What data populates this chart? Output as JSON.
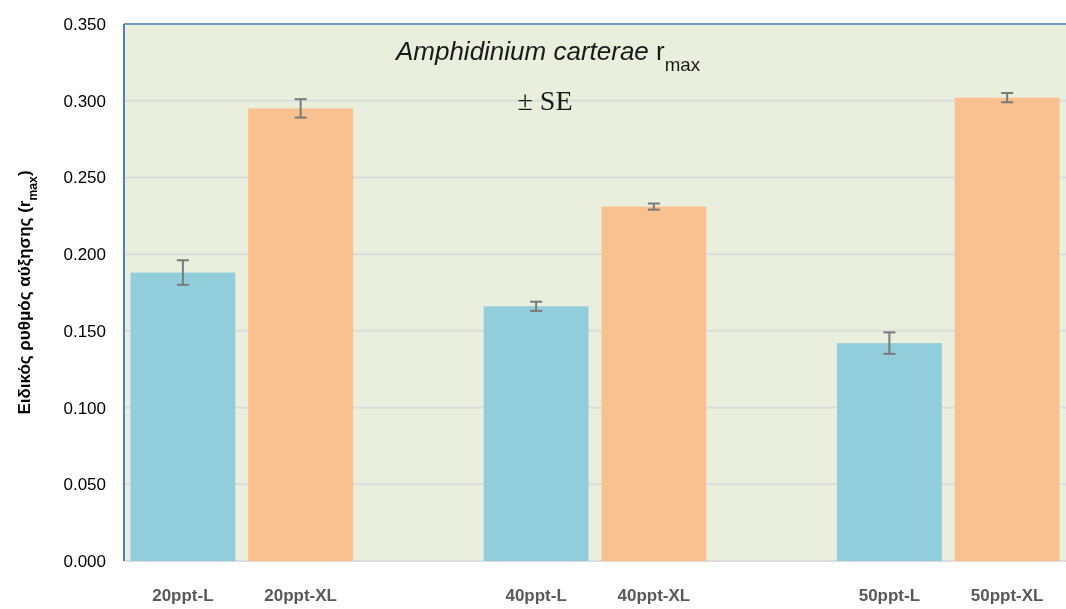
{
  "chart_data": {
    "type": "bar",
    "title": "Amphidinium carterae r$_{max}$",
    "subtitle": "± SE",
    "ylabel": "Ειδικός ρυθμός αύξησης (r$_{max}$)",
    "categories": [
      "20ppt-L",
      "20ppt-XL",
      null,
      "40ppt-L",
      "40ppt-XL",
      null,
      "50ppt-L",
      "50ppt-XL"
    ],
    "values": [
      0.188,
      0.295,
      null,
      0.166,
      0.231,
      null,
      0.142,
      0.302
    ],
    "colors": [
      "#92cddc",
      "#f8c18f",
      null,
      "#92cddc",
      "#f8c18f",
      null,
      "#92cddc",
      "#f8c18f"
    ],
    "errors": [
      0.008,
      0.006,
      null,
      0.003,
      0.002,
      null,
      0.007,
      0.003
    ],
    "ylim": [
      0,
      0.35
    ],
    "yticks": [
      {
        "value": 0,
        "label": "0.000"
      },
      {
        "value": 0.05,
        "label": "0.050"
      },
      {
        "value": 0.1,
        "label": "0.100"
      },
      {
        "value": 0.15,
        "label": "0.150"
      },
      {
        "value": 0.2,
        "label": "0.200"
      },
      {
        "value": 0.25,
        "label": "0.250"
      },
      {
        "value": 0.3,
        "label": "0.300"
      },
      {
        "value": 0.35,
        "label": "0.350"
      }
    ],
    "grid": "y"
  }
}
